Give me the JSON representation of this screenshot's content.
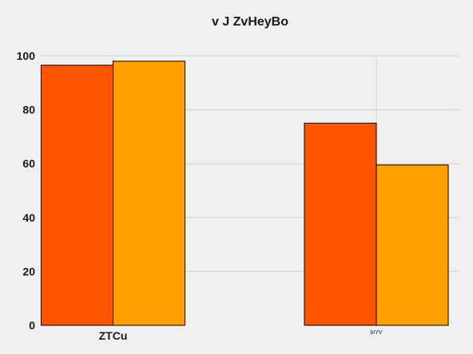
{
  "chart_data": {
    "type": "bar",
    "title": "v J ZvHeyBo",
    "xlabel": "",
    "ylabel": "",
    "categories": [
      "ZTCu",
      "bIYV"
    ],
    "series": [
      {
        "values": [
          96.5,
          75.0
        ],
        "color": "#ff5500"
      },
      {
        "values": [
          98.0,
          59.5
        ],
        "color": "#ffa000"
      }
    ],
    "ylim": [
      0,
      100
    ],
    "yticks": [
      0,
      20,
      40,
      60,
      80,
      100
    ],
    "grid": true,
    "legend": "none"
  }
}
